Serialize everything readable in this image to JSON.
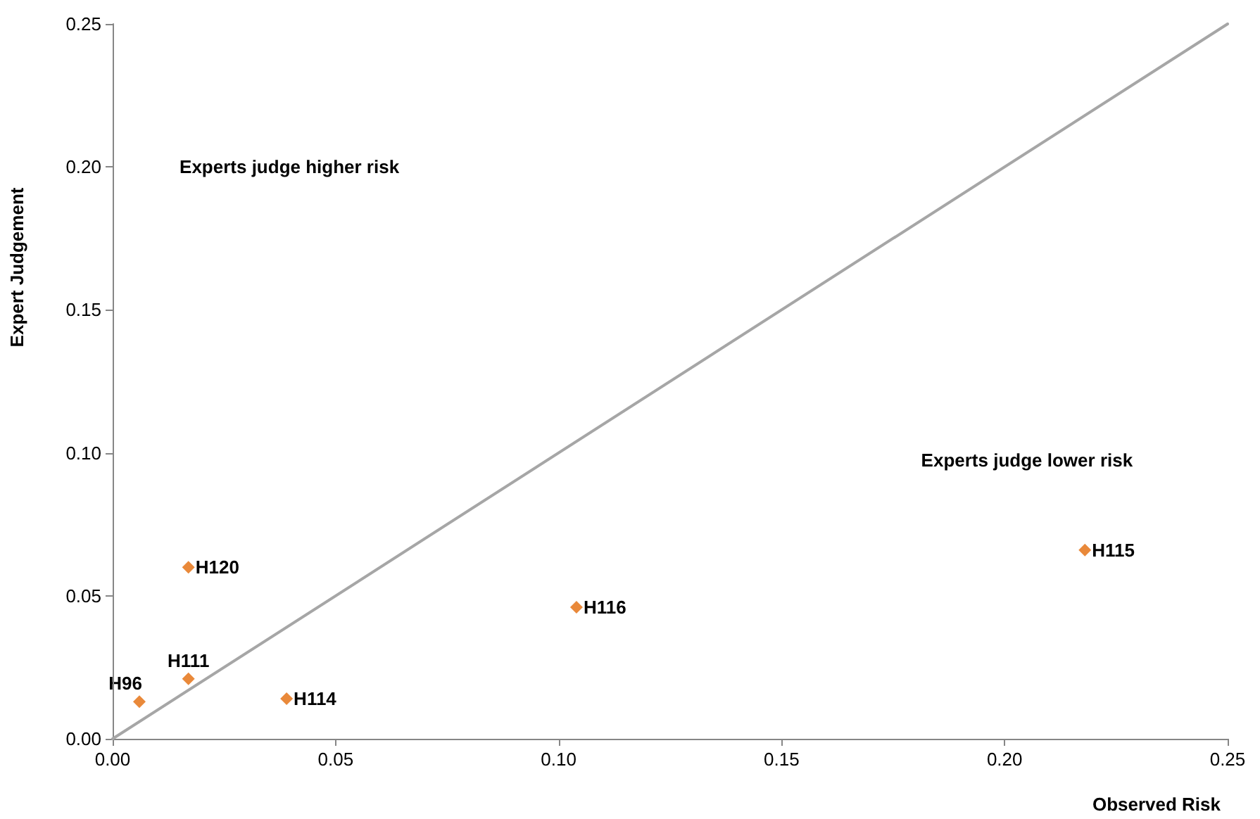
{
  "chart_data": {
    "type": "scatter",
    "xlabel": "Observed Risk",
    "ylabel": "Expert Judgement",
    "xlim": [
      0,
      0.25
    ],
    "xticks": [
      {
        "value": 0,
        "label": "0.00"
      },
      {
        "value": 0.05,
        "label": "0.05"
      },
      {
        "value": 0.1,
        "label": "0.10"
      },
      {
        "value": 0.15,
        "label": "0.15"
      },
      {
        "value": 0.2,
        "label": "0.20"
      },
      {
        "value": 0.25,
        "label": "0.25"
      }
    ],
    "ylim": [
      0,
      0.25
    ],
    "yticks": [
      {
        "value": 0,
        "label": "0.00"
      },
      {
        "value": 0.05,
        "label": "0.05"
      },
      {
        "value": 0.1,
        "label": "0.10"
      },
      {
        "value": 0.15,
        "label": "0.15"
      },
      {
        "value": 0.2,
        "label": "0.20"
      },
      {
        "value": 0.25,
        "label": "0.25"
      }
    ],
    "grid": false,
    "marker": "diamond",
    "series": [
      {
        "color": "#e36c09",
        "x": [
          0.006,
          0.017,
          0.017,
          0.039,
          0.104,
          0.218
        ],
        "values": [
          0.013,
          0.021,
          0.06,
          0.014,
          0.046,
          0.066
        ]
      },
      {
        "type": "line",
        "color": "#a6a6a6",
        "marker": "none",
        "x": [
          0,
          0.25
        ],
        "values": [
          0,
          0.25
        ]
      }
    ],
    "annotations": [
      {
        "text": "H96",
        "x": 0.006,
        "y": 0.013
      },
      {
        "text": "H111",
        "x": 0.017,
        "y": 0.021
      },
      {
        "text": "H120",
        "x": 0.017,
        "y": 0.06
      },
      {
        "text": "H114",
        "x": 0.039,
        "y": 0.014
      },
      {
        "text": "H116",
        "x": 0.104,
        "y": 0.046
      },
      {
        "text": "H115",
        "x": 0.218,
        "y": 0.066
      },
      "Experts judge higher risk",
      "Experts judge lower risk"
    ]
  }
}
